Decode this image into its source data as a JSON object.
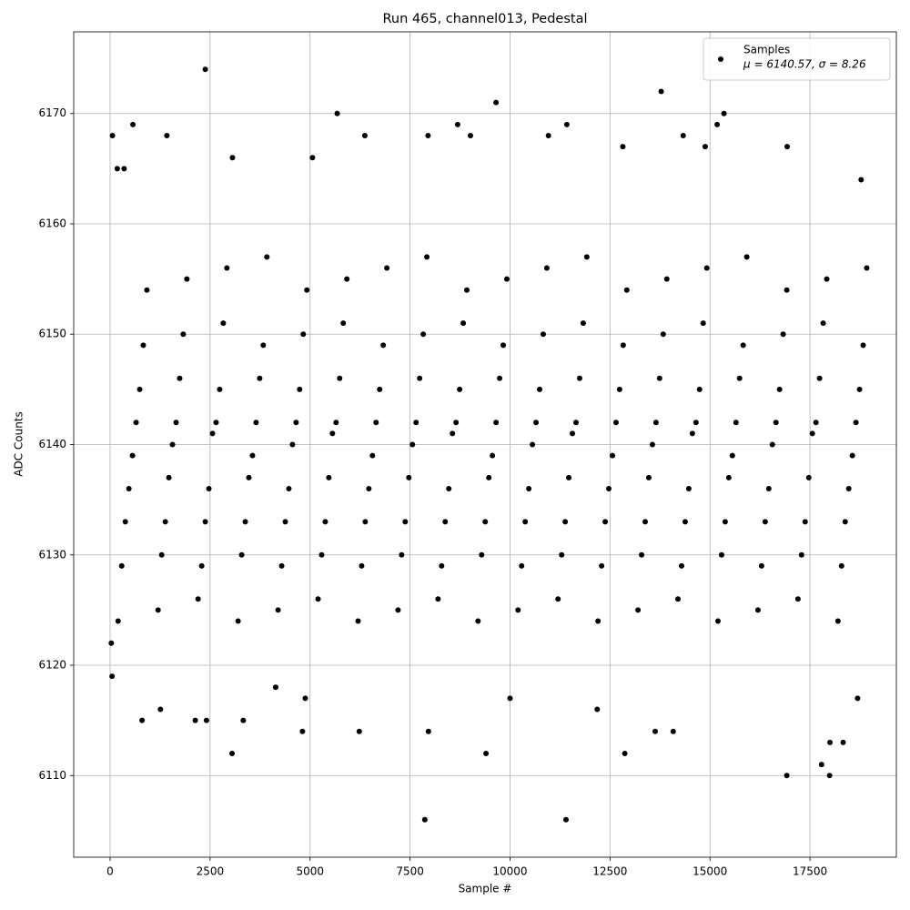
{
  "chart_data": {
    "type": "scatter",
    "title": "Run 465, channel013, Pedestal",
    "xlabel": "Sample #",
    "ylabel": "ADC Counts",
    "xlim": [
      -910,
      19660
    ],
    "ylim": [
      6102.6,
      6177.4
    ],
    "xticks": [
      0,
      2500,
      5000,
      7500,
      10000,
      12500,
      15000,
      17500
    ],
    "yticks": [
      6110,
      6120,
      6130,
      6140,
      6150,
      6160,
      6170
    ],
    "grid": true,
    "legend": "upper right",
    "annotation": "μ = 6140.57, σ = 8.26",
    "series": [
      {
        "name": "Samples",
        "color": "#000000",
        "x": [
          2380,
          5680,
          9650,
          13780,
          15350,
          570,
          11420,
          8690,
          15180,
          60,
          1420,
          6370,
          7950,
          9010,
          10960,
          14330,
          7870,
          11400,
          16920,
          17990,
          3050,
          9400,
          12870,
          1260,
          800,
          2130,
          2410,
          3330,
          7960,
          4810,
          6230,
          10000,
          17790,
          18000,
          18330,
          18690,
          18780,
          16930,
          14880,
          12820,
          5060,
          3060,
          30,
          50,
          180,
          350,
          4140,
          4880,
          12180,
          14080,
          13630,
          200,
          290,
          380,
          470,
          560,
          650,
          740,
          830,
          920,
          1200,
          1290,
          1380,
          1470,
          1560,
          1650,
          1740,
          1830,
          1920,
          2200,
          2290,
          2380,
          2470,
          2560,
          2650,
          2740,
          2830,
          2920,
          3200,
          3290,
          3380,
          3470,
          3560,
          3650,
          3740,
          3830,
          3920,
          4200,
          4290,
          4380,
          4470,
          4560,
          4650,
          4740,
          4830,
          4920,
          5200,
          5290,
          5380,
          5470,
          5560,
          5650,
          5740,
          5830,
          5920,
          6200,
          6290,
          6380,
          6470,
          6560,
          6650,
          6740,
          6830,
          6920,
          7200,
          7290,
          7380,
          7470,
          7560,
          7650,
          7740,
          7830,
          7920,
          8200,
          8290,
          8380,
          8470,
          8560,
          8650,
          8740,
          8830,
          8920,
          9200,
          9290,
          9380,
          9470,
          9560,
          9650,
          9740,
          9830,
          9920,
          10200,
          10290,
          10380,
          10470,
          10560,
          10650,
          10740,
          10830,
          10920,
          11200,
          11290,
          11380,
          11470,
          11560,
          11650,
          11740,
          11830,
          11920,
          12200,
          12290,
          12380,
          12470,
          12560,
          12650,
          12740,
          12830,
          12920,
          13200,
          13290,
          13380,
          13470,
          13560,
          13650,
          13740,
          13830,
          13920,
          14200,
          14290,
          14380,
          14470,
          14560,
          14650,
          14740,
          14830,
          14920,
          15200,
          15290,
          15380,
          15470,
          15560,
          15650,
          15740,
          15830,
          15920,
          16200,
          16290,
          16380,
          16470,
          16560,
          16650,
          16740,
          16830,
          16920,
          17200,
          17290,
          17380,
          17470,
          17560,
          17650,
          17740,
          17830,
          17920,
          18200,
          18290,
          18380,
          18470,
          18560,
          18650,
          18740,
          18830,
          18920
        ],
        "values": [
          6174,
          6170,
          6171,
          6172,
          6170,
          6169,
          6169,
          6169,
          6169,
          6168,
          6168,
          6168,
          6168,
          6168,
          6168,
          6168,
          6106,
          6106,
          6110,
          6110,
          6112,
          6112,
          6112,
          6116,
          6115,
          6115,
          6115,
          6115,
          6114,
          6114,
          6114,
          6117,
          6111,
          6113,
          6113,
          6117,
          6164,
          6167,
          6167,
          6167,
          6166,
          6166,
          6122,
          6119,
          6165,
          6165,
          6118,
          6117,
          6116,
          6114,
          6114,
          6124,
          6129,
          6133,
          6136,
          6139,
          6142,
          6145,
          6149,
          6154,
          6125,
          6130,
          6133,
          6137,
          6140,
          6142,
          6146,
          6150,
          6155,
          6126,
          6129,
          6133,
          6136,
          6141,
          6142,
          6145,
          6151,
          6156,
          6124,
          6130,
          6133,
          6137,
          6139,
          6142,
          6146,
          6149,
          6157,
          6125,
          6129,
          6133,
          6136,
          6140,
          6142,
          6145,
          6150,
          6154,
          6126,
          6130,
          6133,
          6137,
          6141,
          6142,
          6146,
          6151,
          6155,
          6124,
          6129,
          6133,
          6136,
          6139,
          6142,
          6145,
          6149,
          6156,
          6125,
          6130,
          6133,
          6137,
          6140,
          6142,
          6146,
          6150,
          6157,
          6126,
          6129,
          6133,
          6136,
          6141,
          6142,
          6145,
          6151,
          6154,
          6124,
          6130,
          6133,
          6137,
          6139,
          6142,
          6146,
          6149,
          6155,
          6125,
          6129,
          6133,
          6136,
          6140,
          6142,
          6145,
          6150,
          6156,
          6126,
          6130,
          6133,
          6137,
          6141,
          6142,
          6146,
          6151,
          6157,
          6124,
          6129,
          6133,
          6136,
          6139,
          6142,
          6145,
          6149,
          6154,
          6125,
          6130,
          6133,
          6137,
          6140,
          6142,
          6146,
          6150,
          6155,
          6126,
          6129,
          6133,
          6136,
          6141,
          6142,
          6145,
          6151,
          6156,
          6124,
          6130,
          6133,
          6137,
          6139,
          6142,
          6146,
          6149,
          6157,
          6125,
          6129,
          6133,
          6136,
          6140,
          6142,
          6145,
          6150,
          6154,
          6126,
          6130,
          6133,
          6137,
          6141,
          6142,
          6146,
          6151,
          6155,
          6124,
          6129,
          6133,
          6136,
          6139,
          6142,
          6145,
          6149,
          6156
        ]
      }
    ]
  }
}
